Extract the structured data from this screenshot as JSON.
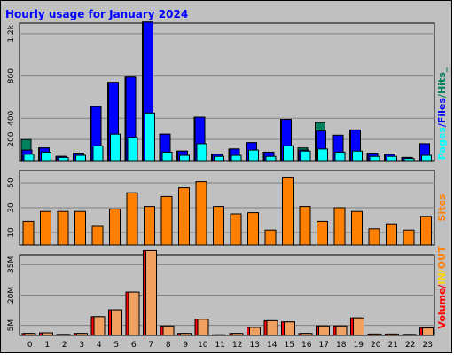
{
  "title": "Hourly usage for January 2024",
  "hours": [
    "0",
    "1",
    "2",
    "3",
    "4",
    "5",
    "6",
    "7",
    "8",
    "9",
    "10",
    "11",
    "12",
    "13",
    "14",
    "15",
    "16",
    "17",
    "18",
    "19",
    "20",
    "21",
    "22",
    "23"
  ],
  "colors": {
    "hits": "#00805c",
    "files": "#0000ff",
    "pages": "#00ffff",
    "sites": "#ff8000",
    "in": "#ffd700",
    "out": "#ff8000",
    "volume": "#ff0000",
    "volume_fill": "#e07020",
    "out_fill": "#f0a060"
  },
  "chart_data": [
    {
      "type": "bar",
      "name": "pages-files-hits",
      "ylim": [
        0,
        1300
      ],
      "yticks": [
        {
          "value": 200,
          "label": "200"
        },
        {
          "value": 400,
          "label": "400"
        },
        {
          "value": 800,
          "label": "800"
        },
        {
          "value": 1200,
          "label": "1.2k"
        }
      ],
      "series": [
        {
          "name": "Hits",
          "values": [
            200,
            120,
            40,
            70,
            510,
            740,
            790,
            1310,
            250,
            90,
            410,
            60,
            110,
            170,
            80,
            390,
            120,
            360,
            240,
            290,
            70,
            60,
            30,
            160
          ]
        },
        {
          "name": "Files",
          "values": [
            100,
            120,
            40,
            70,
            510,
            740,
            790,
            1310,
            250,
            90,
            410,
            60,
            110,
            170,
            80,
            390,
            100,
            280,
            240,
            290,
            70,
            60,
            30,
            160
          ]
        },
        {
          "name": "Pages",
          "values": [
            60,
            80,
            30,
            50,
            140,
            250,
            220,
            450,
            80,
            50,
            160,
            40,
            50,
            100,
            40,
            140,
            90,
            110,
            80,
            90,
            40,
            40,
            20,
            50
          ]
        }
      ],
      "side_label": [
        "Pages",
        "/",
        "Files",
        "/",
        "Hits_"
      ]
    },
    {
      "type": "bar",
      "name": "sites",
      "ylim": [
        0,
        60
      ],
      "yticks": [
        {
          "value": 10,
          "label": "10"
        },
        {
          "value": 30,
          "label": "30"
        },
        {
          "value": 50,
          "label": "50"
        }
      ],
      "series": [
        {
          "name": "Sites",
          "values": [
            19,
            27,
            27,
            27,
            15,
            29,
            42,
            31,
            39,
            46,
            51,
            31,
            25,
            26,
            12,
            54,
            31,
            19,
            30,
            27,
            13,
            17,
            12,
            23
          ]
        }
      ],
      "side_label": [
        "Sites"
      ]
    },
    {
      "type": "bar",
      "name": "volume",
      "ylim": [
        0,
        40
      ],
      "yticks": [
        {
          "value": 5,
          "label": "5M"
        },
        {
          "value": 20,
          "label": "20M"
        },
        {
          "value": 35,
          "label": "35M"
        }
      ],
      "series": [
        {
          "name": "Volume",
          "values": [
            1,
            1.3,
            0.5,
            1,
            9.3,
            12.7,
            21.5,
            42,
            4.7,
            1,
            8,
            0.3,
            1,
            4,
            7.3,
            6.7,
            1,
            4.7,
            4.7,
            8.7,
            0.7,
            0.7,
            0.5,
            3.7
          ]
        },
        {
          "name": "OUT",
          "values": [
            1,
            1.3,
            0.5,
            1,
            9.3,
            12.7,
            21.5,
            42,
            4.7,
            1,
            8,
            0.3,
            1,
            4,
            7.3,
            6.7,
            1,
            4.7,
            4.7,
            8.7,
            0.7,
            0.7,
            0.5,
            3.7
          ]
        }
      ],
      "side_label": [
        "Volume",
        "/",
        "IN",
        "/",
        "OUT"
      ]
    }
  ]
}
